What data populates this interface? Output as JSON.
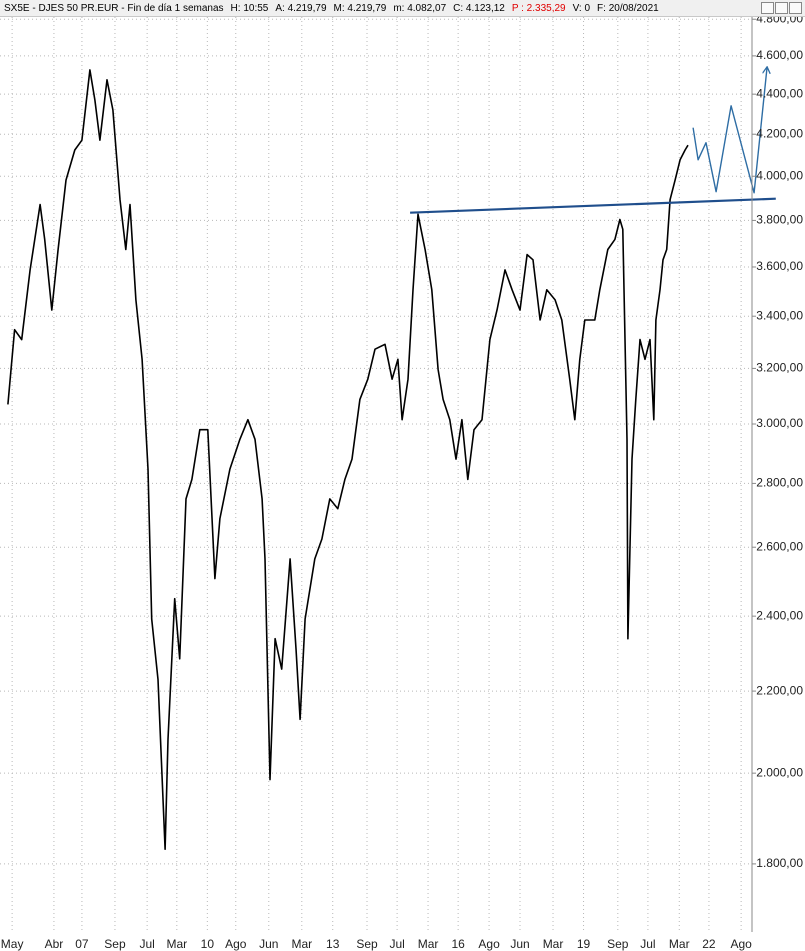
{
  "chart_data": {
    "type": "line",
    "header": [
      {
        "text": "SX5E - DJES 50 PR.EUR - Fin de día 1 semanas",
        "color": "#000000"
      },
      {
        "text": "H: 10:55",
        "color": "#000000"
      },
      {
        "text": "A: 4.219,79",
        "color": "#000000"
      },
      {
        "text": "M: 4.219,79",
        "color": "#000000"
      },
      {
        "text": "m: 4.082,07",
        "color": "#000000"
      },
      {
        "text": "C: 4.123,12",
        "color": "#000000"
      },
      {
        "text": "P : 2.335,29",
        "color": "#e00000"
      },
      {
        "text": "V: 0",
        "color": "#000000"
      },
      {
        "text": "F: 20/08/2021",
        "color": "#000000"
      }
    ],
    "log_scale": true,
    "grid": true,
    "xlim": [
      2005.04,
      2023.03
    ],
    "ylim": [
      1667,
      4880
    ],
    "xticks": [
      {
        "value": 2005.33,
        "label": "May"
      },
      {
        "value": 2006.33,
        "label": "Abr"
      },
      {
        "value": 2007,
        "label": "07"
      },
      {
        "value": 2007.79,
        "label": "Sep"
      },
      {
        "value": 2008.56,
        "label": "Jul"
      },
      {
        "value": 2009.27,
        "label": "Mar"
      },
      {
        "value": 2010,
        "label": "10"
      },
      {
        "value": 2010.68,
        "label": "Ago"
      },
      {
        "value": 2011.47,
        "label": "Jun"
      },
      {
        "value": 2012.26,
        "label": "Mar"
      },
      {
        "value": 2013,
        "label": "13"
      },
      {
        "value": 2013.82,
        "label": "Sep"
      },
      {
        "value": 2014.54,
        "label": "Jul"
      },
      {
        "value": 2015.28,
        "label": "Mar"
      },
      {
        "value": 2016,
        "label": "16"
      },
      {
        "value": 2016.74,
        "label": "Ago"
      },
      {
        "value": 2017.48,
        "label": "Jun"
      },
      {
        "value": 2018.27,
        "label": "Mar"
      },
      {
        "value": 2019,
        "label": "19"
      },
      {
        "value": 2019.82,
        "label": "Sep"
      },
      {
        "value": 2020.54,
        "label": "Jul"
      },
      {
        "value": 2021.29,
        "label": "Mar"
      },
      {
        "value": 2022,
        "label": "22"
      },
      {
        "value": 2022.77,
        "label": "Ago"
      }
    ],
    "yticks": [
      {
        "value": 1800,
        "label": "1.800,00"
      },
      {
        "value": 2000,
        "label": "2.000,00"
      },
      {
        "value": 2200,
        "label": "2.200,00"
      },
      {
        "value": 2400,
        "label": "2.400,00"
      },
      {
        "value": 2600,
        "label": "2.600,00"
      },
      {
        "value": 2800,
        "label": "2.800,00"
      },
      {
        "value": 3000,
        "label": "3.000,00"
      },
      {
        "value": 3200,
        "label": "3.200,00"
      },
      {
        "value": 3400,
        "label": "3.400,00"
      },
      {
        "value": 3600,
        "label": "3.600,00"
      },
      {
        "value": 3800,
        "label": "3.800,00"
      },
      {
        "value": 4000,
        "label": "4.000,00"
      },
      {
        "value": 4200,
        "label": "4.200,00"
      },
      {
        "value": 4400,
        "label": "4.400,00"
      },
      {
        "value": 4600,
        "label": "4.600,00"
      },
      {
        "value": 4800,
        "label": "4.800,00"
      }
    ],
    "series": [
      {
        "color": "#000000",
        "width": 1.6,
        "arrow": false,
        "x": [
          2005.23,
          2005.39,
          2005.56,
          2005.76,
          2006.0,
          2006.11,
          2006.28,
          2006.43,
          2006.62,
          2006.83,
          2007.0,
          2007.19,
          2007.31,
          2007.43,
          2007.6,
          2007.74,
          2007.91,
          2008.05,
          2008.15,
          2008.29,
          2008.44,
          2008.58,
          2008.67,
          2008.82,
          2008.99,
          2009.06,
          2009.22,
          2009.34,
          2009.49,
          2009.63,
          2009.82,
          2010.01,
          2010.18,
          2010.3,
          2010.54,
          2010.78,
          2010.97,
          2011.14,
          2011.31,
          2011.38,
          2011.5,
          2011.62,
          2011.78,
          2011.98,
          2012.12,
          2012.22,
          2012.34,
          2012.57,
          2012.74,
          2012.93,
          2013.12,
          2013.29,
          2013.46,
          2013.65,
          2013.84,
          2014.01,
          2014.25,
          2014.42,
          2014.56,
          2014.66,
          2014.8,
          2014.92,
          2015.04,
          2015.21,
          2015.37,
          2015.52,
          2015.64,
          2015.8,
          2015.95,
          2016.09,
          2016.23,
          2016.38,
          2016.57,
          2016.76,
          2016.93,
          2017.12,
          2017.29,
          2017.48,
          2017.65,
          2017.79,
          2017.96,
          2018.12,
          2018.32,
          2018.48,
          2018.67,
          2018.79,
          2018.91,
          2019.03,
          2019.27,
          2019.39,
          2019.58,
          2019.75,
          2019.87,
          2019.94,
          2020.04,
          2020.06,
          2020.16,
          2020.25,
          2020.35,
          2020.47,
          2020.59,
          2020.68,
          2020.73,
          2020.83,
          2020.9,
          2020.99,
          2021.07,
          2021.19,
          2021.31,
          2021.43,
          2021.5
        ],
        "values": [
          3069,
          3347,
          3309,
          3588,
          3871,
          3717,
          3424,
          3674,
          3982,
          4124,
          4171,
          4526,
          4370,
          4171,
          4474,
          4320,
          3893,
          3674,
          3871,
          3465,
          3234,
          2847,
          2392,
          2230,
          1831,
          2080,
          2449,
          2284,
          2750,
          2813,
          2980,
          2980,
          2507,
          2688,
          2847,
          2947,
          3015,
          2947,
          2750,
          2565,
          1985,
          2338,
          2257,
          2565,
          2311,
          2129,
          2392,
          2565,
          2625,
          2750,
          2719,
          2813,
          2880,
          3087,
          3160,
          3272,
          3291,
          3160,
          3234,
          3015,
          3160,
          3506,
          3827,
          3674,
          3506,
          3196,
          3087,
          3015,
          2880,
          3015,
          2813,
          2980,
          3015,
          3309,
          3424,
          3588,
          3506,
          3424,
          3652,
          3630,
          3385,
          3506,
          3465,
          3385,
          3160,
          3015,
          3234,
          3385,
          3385,
          3506,
          3674,
          3717,
          3804,
          3761,
          2947,
          2338,
          2880,
          3087,
          3309,
          3234,
          3309,
          3015,
          3385,
          3506,
          3630,
          3674,
          3893,
          3982,
          4077,
          4124,
          4147
        ]
      },
      {
        "color": "#1f4e8c",
        "width": 2.2,
        "arrow": false,
        "x": [
          2014.85,
          2023.6
        ],
        "values": [
          3834,
          3897
        ]
      },
      {
        "color": "#2e6da4",
        "width": 1.4,
        "arrow": true,
        "x": [
          2021.62,
          2021.74,
          2021.93,
          2022.17,
          2022.53,
          2023.08,
          2023.39
        ],
        "values": [
          4232,
          4077,
          4159,
          3929,
          4341,
          3924,
          4537
        ]
      }
    ]
  }
}
